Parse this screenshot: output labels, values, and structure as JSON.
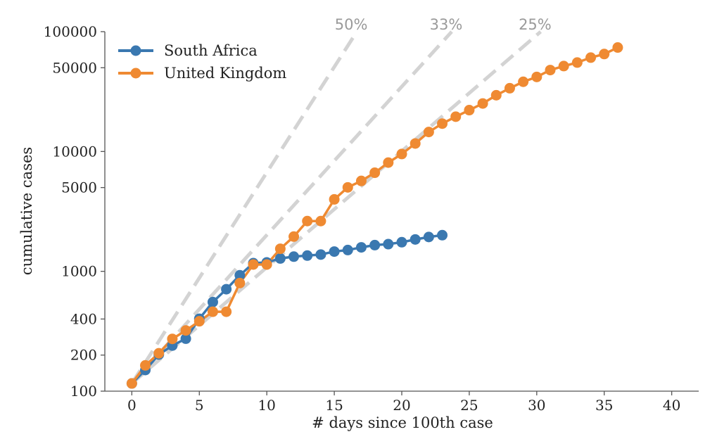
{
  "chart_data": {
    "type": "line",
    "xlabel": "# days since 100th case",
    "ylabel": "cumulative cases",
    "xlim": [
      -2,
      42
    ],
    "ylim": [
      100,
      100000
    ],
    "y_scale": "log",
    "x_ticks": [
      0,
      5,
      10,
      15,
      20,
      25,
      30,
      35,
      40
    ],
    "x_tick_labels": [
      "0",
      "5",
      "10",
      "15",
      "20",
      "25",
      "30",
      "35",
      "40"
    ],
    "y_ticks": [
      100,
      200,
      400,
      1000,
      5000,
      10000,
      50000,
      100000
    ],
    "y_tick_labels": [
      "100",
      "200",
      "400",
      "1000",
      "5000",
      "10000",
      "50000",
      "100000"
    ],
    "grid": false,
    "legend_position": "top-left",
    "colors": {
      "south_africa": "#3a78b0",
      "united_kingdom": "#ef8a32",
      "reference": "#d3d3d3",
      "axis": "#555555"
    },
    "series": [
      {
        "name": "South Africa",
        "x": [
          0,
          1,
          2,
          3,
          4,
          5,
          6,
          7,
          8,
          9,
          10,
          11,
          12,
          13,
          14,
          15,
          16,
          17,
          18,
          19,
          20,
          21,
          22,
          23
        ],
        "y": [
          116,
          150,
          202,
          240,
          274,
          402,
          554,
          709,
          927,
          1170,
          1187,
          1280,
          1326,
          1353,
          1380,
          1462,
          1505,
          1585,
          1655,
          1686,
          1749,
          1845,
          1934,
          2003
        ]
      },
      {
        "name": "United Kingdom",
        "x": [
          0,
          1,
          2,
          3,
          4,
          5,
          6,
          7,
          8,
          9,
          10,
          11,
          12,
          13,
          14,
          15,
          16,
          17,
          18,
          19,
          20,
          21,
          22,
          23,
          24,
          25,
          26,
          27,
          28,
          29,
          30,
          31,
          32,
          33,
          34,
          35,
          36
        ],
        "y": [
          116,
          164,
          207,
          273,
          321,
          383,
          460,
          460,
          798,
          1140,
          1140,
          1543,
          1950,
          2626,
          2626,
          3983,
          5018,
          5683,
          6650,
          8077,
          9529,
          11658,
          14543,
          17089,
          19522,
          22141,
          25150,
          29474,
          33718,
          38168,
          41903,
          47806,
          51608,
          55242,
          60733,
          65077,
          73758
        ]
      }
    ],
    "reference_lines": [
      {
        "label": "25%",
        "daily_growth": 0.25
      },
      {
        "label": "33%",
        "daily_growth": 0.33
      },
      {
        "label": "50%",
        "daily_growth": 0.5
      }
    ]
  }
}
